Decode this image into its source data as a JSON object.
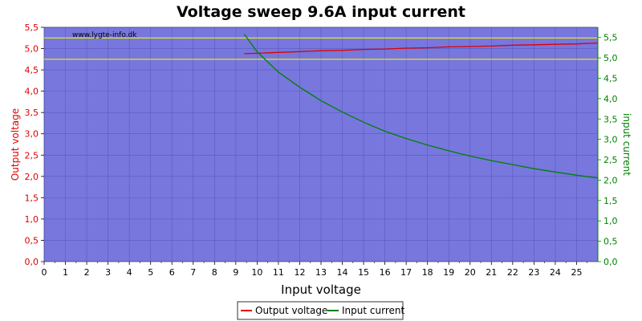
{
  "chart_data": {
    "type": "line",
    "title": "Voltage sweep 9.6A input current",
    "xlabel": "Input voltage",
    "ylabel_left": "Output voltage",
    "ylabel_right": "input current",
    "watermark": "www.lygte-info.dk",
    "xlim": [
      0,
      26
    ],
    "ylim_left": [
      0,
      5.5
    ],
    "ylim_right": [
      0,
      5.75
    ],
    "x_ticks": [
      0,
      1,
      2,
      3,
      4,
      5,
      6,
      7,
      8,
      9,
      10,
      11,
      12,
      13,
      14,
      15,
      16,
      17,
      18,
      19,
      20,
      21,
      22,
      23,
      24,
      25
    ],
    "x_tick_labels": [
      "0",
      "1",
      "2",
      "3",
      "4",
      "5",
      "6",
      "7",
      "8",
      "9",
      "10",
      "11",
      "12",
      "13",
      "14",
      "15",
      "16",
      "17",
      "18",
      "19",
      "20",
      "21",
      "22",
      "23",
      "24",
      "25"
    ],
    "y_left_ticks": [
      0,
      0.5,
      1,
      1.5,
      2,
      2.5,
      3,
      3.5,
      4,
      4.5,
      5,
      5.5
    ],
    "y_left_tick_labels": [
      "0,0",
      "0,5",
      "1,0",
      "1,5",
      "2,0",
      "2,5",
      "3,0",
      "3,5",
      "4,0",
      "4,5",
      "5,0",
      "5,5"
    ],
    "y_right_ticks": [
      0,
      0.5,
      1,
      1.5,
      2,
      2.5,
      3,
      3.5,
      4,
      4.5,
      5,
      5.5
    ],
    "y_right_tick_labels": [
      "0,0",
      "0,5",
      "1,0",
      "1,5",
      "2,0",
      "2,5",
      "3,0",
      "3,5",
      "4,0",
      "4,5",
      "5,0",
      "5,5"
    ],
    "reference_lines_left": [
      4.75,
      5.25
    ],
    "grid": true,
    "legend_position": "bottom-center",
    "series": [
      {
        "name": "Output voltage",
        "axis": "left",
        "color": "#e00000",
        "x": [
          9.4,
          10,
          11,
          12,
          13,
          14,
          15,
          16,
          17,
          18,
          19,
          20,
          21,
          22,
          23,
          24,
          25,
          26
        ],
        "values": [
          4.88,
          4.89,
          4.91,
          4.93,
          4.95,
          4.96,
          4.98,
          4.99,
          5.01,
          5.02,
          5.04,
          5.05,
          5.06,
          5.08,
          5.09,
          5.1,
          5.11,
          5.13
        ]
      },
      {
        "name": "Input current",
        "axis": "right",
        "color": "#008000",
        "x": [
          9.4,
          10,
          11,
          12,
          13,
          14,
          15,
          16,
          17,
          18,
          19,
          20,
          21,
          22,
          23,
          24,
          25,
          26
        ],
        "values": [
          5.58,
          5.15,
          4.65,
          4.28,
          3.95,
          3.67,
          3.42,
          3.2,
          3.02,
          2.86,
          2.72,
          2.59,
          2.48,
          2.38,
          2.28,
          2.2,
          2.12,
          2.05
        ]
      }
    ]
  }
}
